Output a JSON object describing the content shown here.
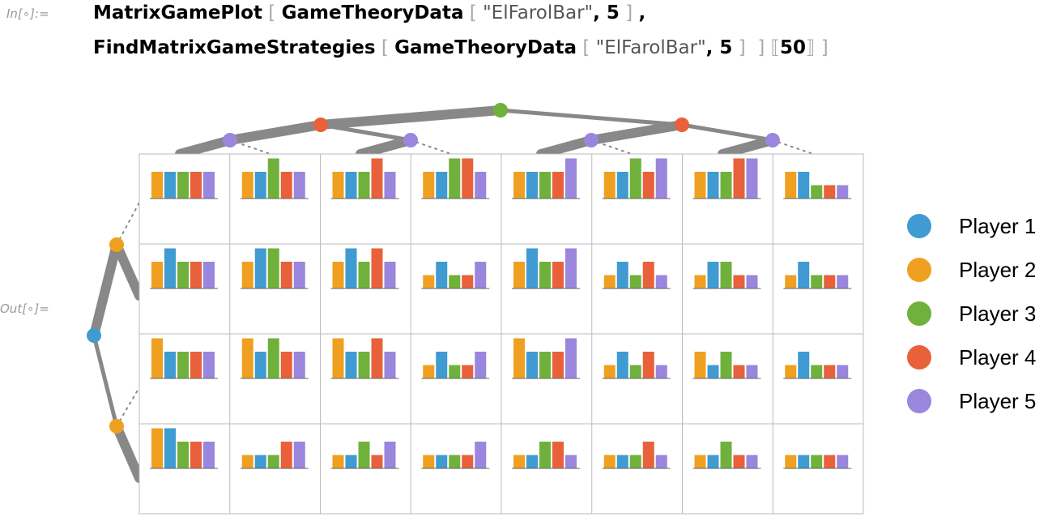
{
  "input": {
    "label": "In[∘]:=",
    "line1": {
      "fn": "MatrixGamePlot",
      "arg_fn": "GameTheoryData",
      "str": "\"ElFarolBar\"",
      "num": "5"
    },
    "line2": {
      "fn": "FindMatrixGameStrategies",
      "arg_fn": "GameTheoryData",
      "str": "\"ElFarolBar\"",
      "num": "5",
      "index": "50"
    }
  },
  "output": {
    "label": "Out[∘]="
  },
  "colors": {
    "player1": "#3f9bd1",
    "player2": "#f0a020",
    "player3": "#6fb13a",
    "player4": "#e8613a",
    "player5": "#9a86dc",
    "tree": "#888888",
    "grid": "#bbbbbb"
  },
  "legend": [
    {
      "label": "Player 1",
      "color": "#3f9bd1"
    },
    {
      "label": "Player 2",
      "color": "#f0a020"
    },
    {
      "label": "Player 3",
      "color": "#6fb13a"
    },
    {
      "label": "Player 4",
      "color": "#e8613a"
    },
    {
      "label": "Player 5",
      "color": "#9a86dc"
    }
  ],
  "chart_data": {
    "type": "bar",
    "description_rows": 4,
    "description_cols": 8,
    "series_names": [
      "Player 1",
      "Player 2",
      "Player 3",
      "Player 4",
      "Player 5"
    ],
    "cells": [
      [
        [
          2,
          2,
          2,
          2,
          2
        ],
        [
          2,
          2,
          3,
          2,
          2
        ],
        [
          2,
          2,
          2,
          3,
          2
        ],
        [
          2,
          2,
          3,
          3,
          2
        ],
        [
          2,
          2,
          2,
          2,
          3
        ],
        [
          2,
          2,
          3,
          2,
          3
        ],
        [
          2,
          2,
          2,
          3,
          3
        ],
        [
          2,
          2,
          1,
          1,
          1
        ]
      ],
      [
        [
          2,
          3,
          2,
          2,
          2
        ],
        [
          2,
          3,
          3,
          2,
          2
        ],
        [
          2,
          3,
          2,
          3,
          2
        ],
        [
          1,
          2,
          1,
          1,
          2
        ],
        [
          2,
          3,
          2,
          2,
          3
        ],
        [
          1,
          2,
          1,
          2,
          1
        ],
        [
          1,
          2,
          2,
          1,
          1
        ],
        [
          1,
          2,
          1,
          1,
          1
        ]
      ],
      [
        [
          3,
          2,
          2,
          2,
          2
        ],
        [
          3,
          2,
          3,
          2,
          2
        ],
        [
          3,
          2,
          2,
          3,
          2
        ],
        [
          1,
          2,
          1,
          1,
          2
        ],
        [
          3,
          2,
          2,
          2,
          3
        ],
        [
          1,
          2,
          1,
          2,
          1
        ],
        [
          2,
          1,
          2,
          1,
          1
        ],
        [
          1,
          2,
          1,
          1,
          1
        ]
      ],
      [
        [
          3,
          3,
          2,
          2,
          2
        ],
        [
          1,
          1,
          1,
          2,
          2
        ],
        [
          1,
          1,
          2,
          1,
          2
        ],
        [
          1,
          1,
          1,
          1,
          2
        ],
        [
          1,
          1,
          2,
          2,
          1
        ],
        [
          1,
          1,
          1,
          2,
          1
        ],
        [
          1,
          1,
          2,
          1,
          1
        ],
        [
          1,
          1,
          1,
          1,
          1
        ]
      ]
    ],
    "cell_series_order": [
      "Player 2",
      "Player 1",
      "Player 3",
      "Player 4",
      "Player 5"
    ]
  }
}
